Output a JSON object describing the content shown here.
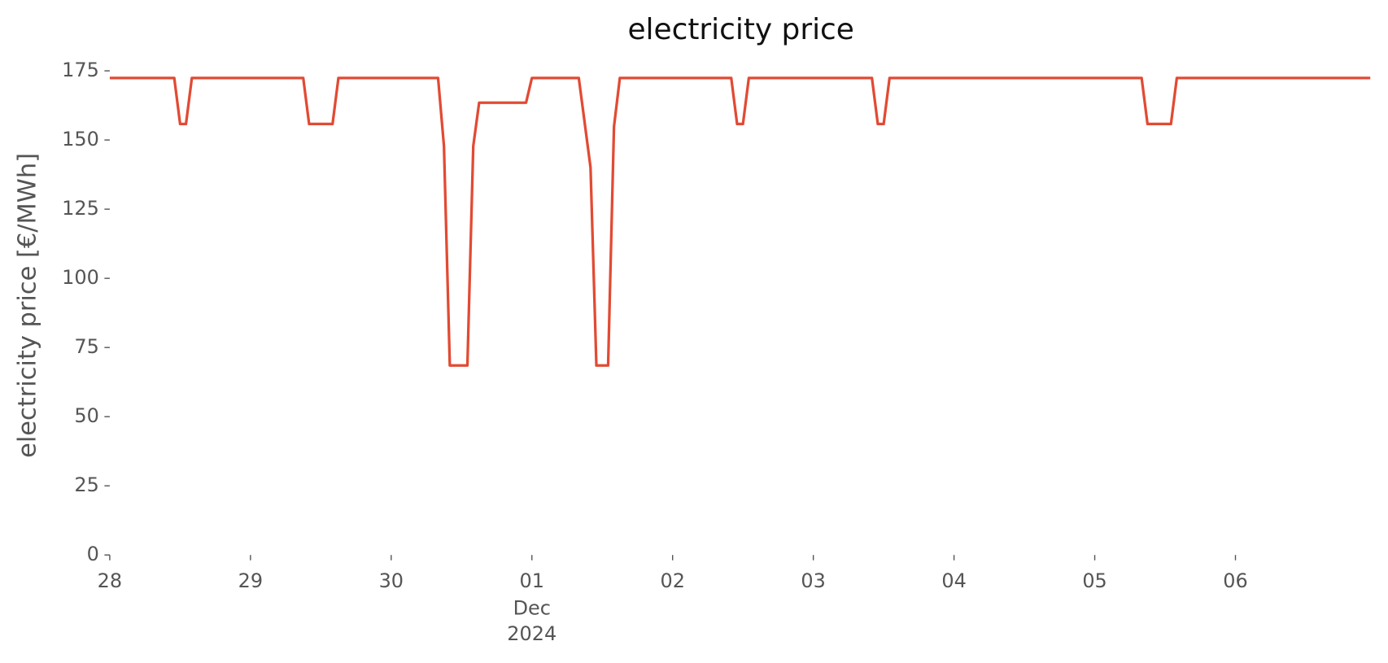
{
  "chart_data": {
    "type": "line",
    "title": "electricity price",
    "ylabel": "electricity price [€/MWh]",
    "x": [
      "2024-11-28T00:00",
      "2024-11-28T11:00",
      "2024-11-28T12:00",
      "2024-11-28T13:00",
      "2024-11-28T14:00",
      "2024-11-29T09:00",
      "2024-11-29T10:00",
      "2024-11-29T14:00",
      "2024-11-29T15:00",
      "2024-11-30T08:00",
      "2024-11-30T09:00",
      "2024-11-30T10:00",
      "2024-11-30T13:00",
      "2024-11-30T14:00",
      "2024-11-30T15:00",
      "2024-11-30T23:00",
      "2024-12-01T00:00",
      "2024-12-01T08:00",
      "2024-12-01T10:00",
      "2024-12-01T11:00",
      "2024-12-01T13:00",
      "2024-12-01T14:00",
      "2024-12-01T15:00",
      "2024-12-02T10:00",
      "2024-12-02T11:00",
      "2024-12-02T12:00",
      "2024-12-02T13:00",
      "2024-12-03T10:00",
      "2024-12-03T11:00",
      "2024-12-03T12:00",
      "2024-12-03T13:00",
      "2024-12-05T08:00",
      "2024-12-05T09:00",
      "2024-12-05T13:00",
      "2024-12-05T14:00",
      "2024-12-06T23:00"
    ],
    "values": [
      172.4,
      172.4,
      155.8,
      155.8,
      172.4,
      172.4,
      155.8,
      155.8,
      172.4,
      172.4,
      147.8,
      68.5,
      68.5,
      147.8,
      163.5,
      163.5,
      172.4,
      172.4,
      140.1,
      68.5,
      68.5,
      154.8,
      172.4,
      172.4,
      155.8,
      155.8,
      172.4,
      172.4,
      155.8,
      155.8,
      172.4,
      172.4,
      155.8,
      155.8,
      172.4,
      172.4
    ],
    "color": "#E24A33",
    "xlim": [
      "2024-11-28T00:00",
      "2024-12-06T23:00"
    ],
    "xticks": [
      {
        "value": "2024-11-28T00:00",
        "label": "28"
      },
      {
        "value": "2024-11-29T00:00",
        "label": "29"
      },
      {
        "value": "2024-11-30T00:00",
        "label": "30"
      },
      {
        "value": "2024-12-01T00:00",
        "label": "01"
      },
      {
        "value": "2024-12-02T00:00",
        "label": "02"
      },
      {
        "value": "2024-12-03T00:00",
        "label": "03"
      },
      {
        "value": "2024-12-04T00:00",
        "label": "04"
      },
      {
        "value": "2024-12-05T00:00",
        "label": "05"
      },
      {
        "value": "2024-12-06T00:00",
        "label": "06"
      }
    ],
    "x_offset_label": [
      "Dec",
      "2024"
    ],
    "ylim": [
      0,
      175
    ],
    "yticks": [
      0,
      25,
      50,
      75,
      100,
      125,
      150,
      175
    ],
    "grid": false
  }
}
